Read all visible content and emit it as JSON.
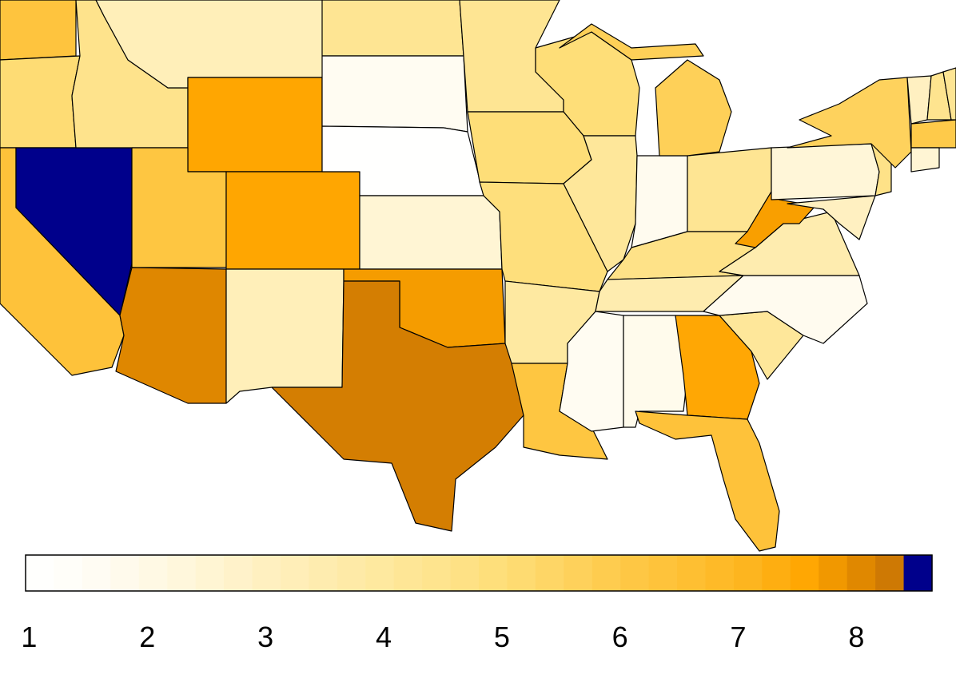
{
  "chart_data": {
    "type": "choropleth",
    "values": [
      6.3,
      5.1,
      6.4,
      8.55,
      4.5,
      3.2,
      7.6,
      6.2,
      7.6,
      8.05,
      3.2,
      4.3,
      1.6,
      1.0,
      2.5,
      7.75,
      8.2,
      4.3,
      5.0,
      5.0,
      4.9,
      3.9,
      6.2,
      4.1,
      1.7,
      4.3,
      5.7,
      4.6,
      3.5,
      1.6,
      1.8,
      7.55,
      6.4,
      4.1,
      1.7,
      3.5,
      7.7,
      2.4,
      3.0,
      4.6,
      5.6,
      3.0,
      4.4,
      6.0,
      2.5,
      4.3
    ],
    "scale_lim": [
      0.97,
      8.64
    ],
    "ticks": [
      1,
      2,
      3,
      4,
      5,
      6,
      7,
      8
    ],
    "colors": [
      "#ffffff",
      "#fffdf6",
      "#fff9e6",
      "#fff5d4",
      "#fff0c0",
      "#feecae",
      "#fee89c",
      "#fee38a",
      "#fedd76",
      "#fed35e",
      "#fec846",
      "#febf32",
      "#fdb51e",
      "#ffa500",
      "#d98200",
      "#b5650f"
    ],
    "max_color": "#00008b"
  }
}
